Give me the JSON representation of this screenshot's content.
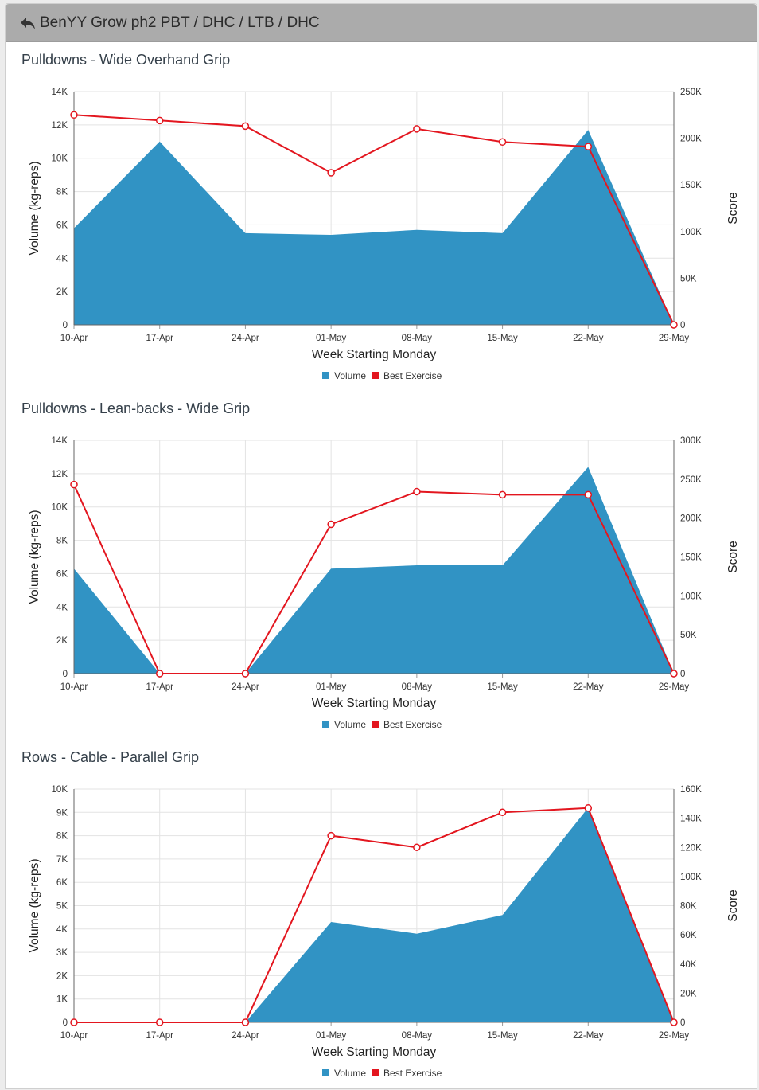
{
  "header": {
    "title": "BenYY Grow ph2 PBT / DHC / LTB / DHC",
    "back_icon": "reply-arrow-icon"
  },
  "colors": {
    "volume": "#3193c4",
    "best_exercise": "#e3161f",
    "grid": "#e3e3e3"
  },
  "chart_data": [
    {
      "type": "area",
      "title": "Pulldowns - Wide Overhand Grip",
      "xlabel": "Week Starting Monday",
      "ylabel": "Volume (kg-reps)",
      "y2label": "Score",
      "categories": [
        "10-Apr",
        "17-Apr",
        "24-Apr",
        "01-May",
        "08-May",
        "15-May",
        "22-May",
        "29-May"
      ],
      "ylim": [
        0,
        14000
      ],
      "yticks": [
        "0",
        "2K",
        "4K",
        "6K",
        "8K",
        "10K",
        "12K",
        "14K"
      ],
      "y2lim": [
        0,
        250000
      ],
      "y2ticks": [
        "0",
        "50K",
        "100K",
        "150K",
        "200K",
        "250K"
      ],
      "grid": true,
      "legend_position": "bottom-center",
      "series": [
        {
          "name": "Volume",
          "type": "area",
          "axis": "left",
          "values": [
            5800,
            11000,
            5500,
            5400,
            5700,
            5500,
            11700,
            0
          ]
        },
        {
          "name": "Best Exercise",
          "type": "line",
          "axis": "right",
          "values": [
            225000,
            219000,
            213000,
            163000,
            210000,
            196000,
            191000,
            0
          ]
        }
      ]
    },
    {
      "type": "area",
      "title": "Pulldowns - Lean-backs - Wide Grip",
      "xlabel": "Week Starting Monday",
      "ylabel": "Volume (kg-reps)",
      "y2label": "Score",
      "categories": [
        "10-Apr",
        "17-Apr",
        "24-Apr",
        "01-May",
        "08-May",
        "15-May",
        "22-May",
        "29-May"
      ],
      "ylim": [
        0,
        14000
      ],
      "yticks": [
        "0",
        "2K",
        "4K",
        "6K",
        "8K",
        "10K",
        "12K",
        "14K"
      ],
      "y2lim": [
        0,
        300000
      ],
      "y2ticks": [
        "0",
        "50K",
        "100K",
        "150K",
        "200K",
        "250K",
        "300K"
      ],
      "grid": true,
      "legend_position": "bottom-center",
      "series": [
        {
          "name": "Volume",
          "type": "area",
          "axis": "left",
          "values": [
            6300,
            0,
            0,
            6300,
            6500,
            6500,
            12400,
            0
          ]
        },
        {
          "name": "Best Exercise",
          "type": "line",
          "axis": "right",
          "values": [
            243000,
            0,
            0,
            192000,
            234000,
            230000,
            230000,
            0
          ]
        }
      ]
    },
    {
      "type": "area",
      "title": "Rows - Cable - Parallel Grip",
      "xlabel": "Week Starting Monday",
      "ylabel": "Volume (kg-reps)",
      "y2label": "Score",
      "categories": [
        "10-Apr",
        "17-Apr",
        "24-Apr",
        "01-May",
        "08-May",
        "15-May",
        "22-May",
        "29-May"
      ],
      "ylim": [
        0,
        10000
      ],
      "yticks": [
        "0",
        "1K",
        "2K",
        "3K",
        "4K",
        "5K",
        "6K",
        "7K",
        "8K",
        "9K",
        "10K"
      ],
      "y2lim": [
        0,
        160000
      ],
      "y2ticks": [
        "0",
        "20K",
        "40K",
        "60K",
        "80K",
        "100K",
        "120K",
        "140K",
        "160K"
      ],
      "grid": true,
      "legend_position": "bottom-center",
      "series": [
        {
          "name": "Volume",
          "type": "area",
          "axis": "left",
          "values": [
            0,
            0,
            0,
            4300,
            3800,
            4600,
            9200,
            0
          ]
        },
        {
          "name": "Best Exercise",
          "type": "line",
          "axis": "right",
          "values": [
            0,
            0,
            0,
            128000,
            120000,
            144000,
            147000,
            0
          ]
        }
      ]
    }
  ]
}
